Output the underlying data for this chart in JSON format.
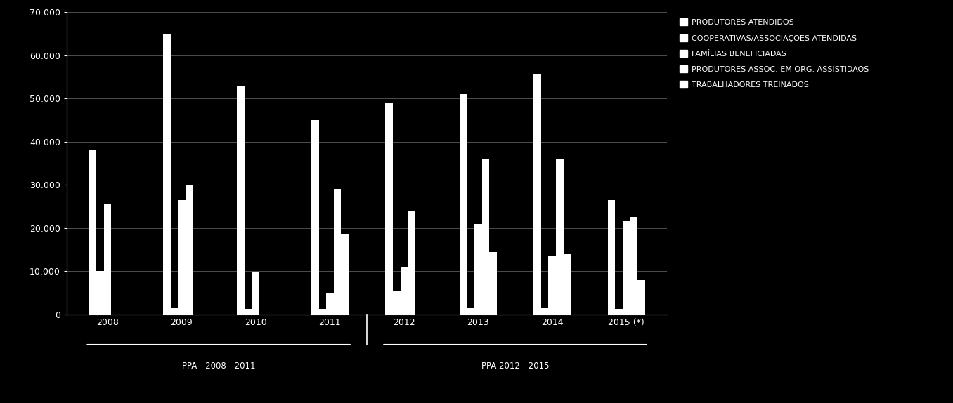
{
  "years": [
    "2008",
    "2009",
    "2010",
    "2011",
    "2012",
    "2013",
    "2014",
    "2015 (*)"
  ],
  "series": {
    "PRODUTORES ATENDIDOS": [
      38000,
      65000,
      53000,
      45000,
      49000,
      51000,
      55500,
      26500
    ],
    "COOPERATIVAS/ASSOCIAÇÕES ATENDIDAS": [
      10000,
      1500,
      1200,
      1200,
      5500,
      1500,
      1500,
      1200
    ],
    "FAMÍLIAS BENEFICIADAS": [
      25500,
      26500,
      9700,
      5000,
      11000,
      21000,
      13500,
      21500
    ],
    "PRODUTORES ASSOC. EM ORG. ASSISTIDAOS": [
      0,
      30000,
      0,
      29000,
      24000,
      36000,
      36000,
      22500
    ],
    "TRABALHADORES TREINADOS": [
      0,
      0,
      0,
      18500,
      0,
      14500,
      14000,
      8000
    ]
  },
  "legend_labels": [
    "PRODUTORES ATENDIDOS",
    "COOPERATIVAS/ASSOCIAÇÕES ATENDIDAS",
    "FAMÍLIAS BENEFICIADAS",
    "PRODUTORES ASSOC. EM ORG. ASSISTIDAOS",
    "TRABALHADORES TREINADOS"
  ],
  "bar_color": "#ffffff",
  "background_color": "#000000",
  "text_color": "#ffffff",
  "grid_color": "#888888",
  "ylim": [
    0,
    70000
  ],
  "yticks": [
    0,
    10000,
    20000,
    30000,
    40000,
    50000,
    60000,
    70000
  ],
  "ppa1_label": "PPA - 2008 - 2011",
  "ppa2_label": "PPA 2012 - 2015"
}
